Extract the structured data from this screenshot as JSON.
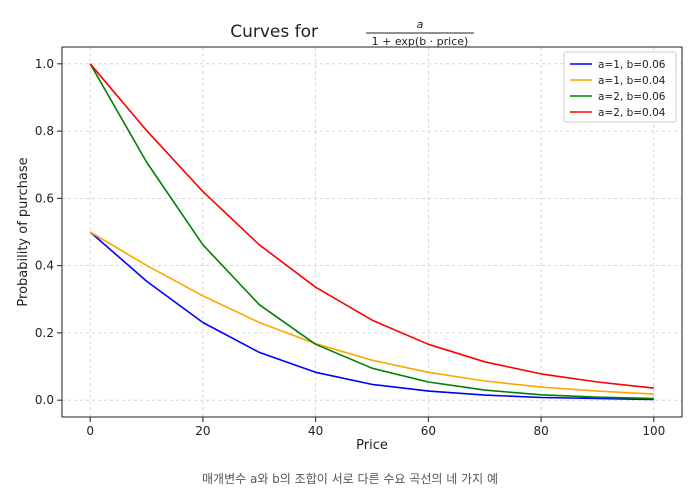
{
  "chart_data": {
    "type": "line",
    "title_prefix": "Curves for",
    "title_numerator": "a",
    "title_denominator": "1 + exp(b · price)",
    "xlabel": "Price",
    "ylabel": "Probability of purchase",
    "xlim": [
      -5,
      105
    ],
    "ylim": [
      -0.05,
      1.05
    ],
    "x_ticks": [
      0,
      20,
      40,
      60,
      80,
      100
    ],
    "y_ticks": [
      0.0,
      0.2,
      0.4,
      0.6,
      0.8,
      1.0
    ],
    "grid": true,
    "legend_position": "top-right",
    "series": [
      {
        "name": "a=1, b=0.06",
        "color": "#0000ff",
        "x": [
          0,
          10,
          20,
          30,
          40,
          50,
          60,
          70,
          80,
          90,
          100
        ],
        "y": [
          0.5,
          0.354,
          0.231,
          0.142,
          0.083,
          0.047,
          0.027,
          0.015,
          0.008,
          0.005,
          0.002
        ]
      },
      {
        "name": "a=1, b=0.04",
        "color": "#ffa500",
        "x": [
          0,
          10,
          20,
          30,
          40,
          50,
          60,
          70,
          80,
          90,
          100
        ],
        "y": [
          0.5,
          0.401,
          0.31,
          0.231,
          0.168,
          0.119,
          0.083,
          0.057,
          0.039,
          0.027,
          0.018
        ]
      },
      {
        "name": "a=2, b=0.06",
        "color": "#008000",
        "x": [
          0,
          10,
          20,
          30,
          40,
          50,
          60,
          70,
          80,
          90,
          100
        ],
        "y": [
          1.0,
          0.708,
          0.462,
          0.284,
          0.166,
          0.095,
          0.054,
          0.03,
          0.016,
          0.009,
          0.005
        ]
      },
      {
        "name": "a=2, b=0.04",
        "color": "#ff0000",
        "x": [
          0,
          10,
          20,
          30,
          40,
          50,
          60,
          70,
          80,
          90,
          100
        ],
        "y": [
          1.0,
          0.802,
          0.62,
          0.462,
          0.336,
          0.238,
          0.166,
          0.114,
          0.078,
          0.054,
          0.036
        ]
      }
    ]
  },
  "caption": "매개변수 a와 b의 조합이 서로 다른 수요 곡선의 네 가지 예"
}
